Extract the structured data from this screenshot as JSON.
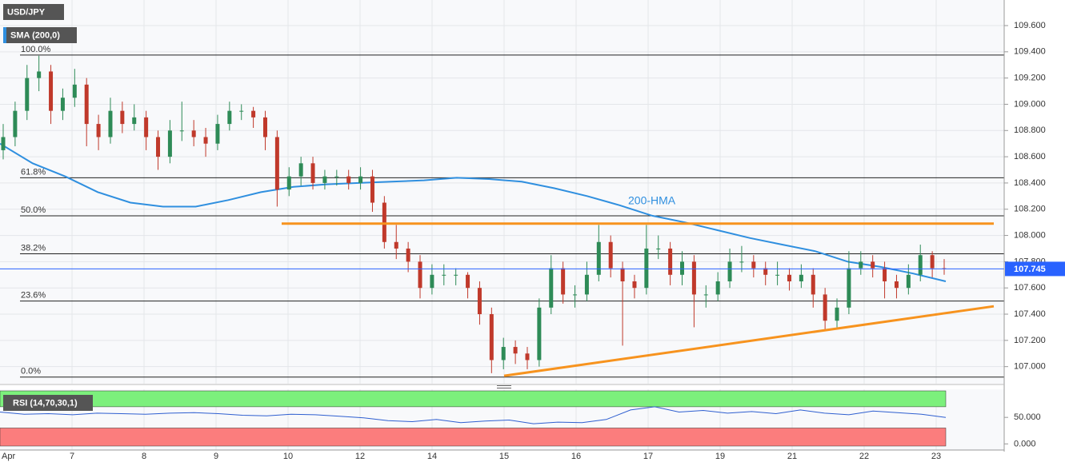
{
  "chart_data": {
    "type": "candlestick",
    "symbol": "USD/JPY",
    "indicator": "SMA (200,0)",
    "x_labels": [
      "Apr",
      "7",
      "8",
      "9",
      "10",
      "12",
      "14",
      "15",
      "16",
      "17",
      "19",
      "21",
      "22",
      "23"
    ],
    "up_color": "#2e8b57",
    "down_color": "#c0392b",
    "ohlc": [
      [
        108.65,
        108.85,
        108.58,
        108.75
      ],
      [
        108.75,
        109.02,
        108.68,
        108.95
      ],
      [
        108.95,
        109.3,
        108.88,
        109.2
      ],
      [
        109.2,
        109.37,
        109.1,
        109.25
      ],
      [
        109.25,
        109.3,
        108.85,
        108.95
      ],
      [
        108.95,
        109.12,
        108.88,
        109.05
      ],
      [
        109.05,
        109.27,
        108.98,
        109.15
      ],
      [
        109.15,
        109.2,
        108.68,
        108.85
      ],
      [
        108.85,
        108.92,
        108.65,
        108.75
      ],
      [
        108.75,
        109.05,
        108.7,
        108.95
      ],
      [
        108.95,
        109.02,
        108.78,
        108.85
      ],
      [
        108.85,
        109.0,
        108.8,
        108.9
      ],
      [
        108.9,
        108.95,
        108.65,
        108.75
      ],
      [
        108.75,
        108.8,
        108.5,
        108.6
      ],
      [
        108.6,
        108.88,
        108.55,
        108.8
      ],
      [
        108.8,
        109.02,
        108.72,
        108.8
      ],
      [
        108.8,
        108.88,
        108.68,
        108.75
      ],
      [
        108.75,
        108.82,
        108.6,
        108.7
      ],
      [
        108.7,
        108.92,
        108.65,
        108.85
      ],
      [
        108.85,
        109.02,
        108.8,
        108.95
      ],
      [
        108.95,
        109.0,
        108.88,
        108.95
      ],
      [
        108.95,
        108.98,
        108.82,
        108.9
      ],
      [
        108.9,
        108.95,
        108.65,
        108.75
      ],
      [
        108.75,
        108.8,
        108.22,
        108.35
      ],
      [
        108.35,
        108.52,
        108.3,
        108.45
      ],
      [
        108.45,
        108.6,
        108.38,
        108.55
      ],
      [
        108.55,
        108.6,
        108.35,
        108.4
      ],
      [
        108.4,
        108.5,
        108.35,
        108.45
      ],
      [
        108.45,
        108.5,
        108.38,
        108.45
      ],
      [
        108.45,
        108.5,
        108.35,
        108.4
      ],
      [
        108.4,
        108.52,
        108.35,
        108.45
      ],
      [
        108.45,
        108.5,
        108.18,
        108.25
      ],
      [
        108.25,
        108.3,
        107.9,
        107.95
      ],
      [
        107.95,
        108.08,
        107.82,
        107.9
      ],
      [
        107.9,
        107.95,
        107.72,
        107.8
      ],
      [
        107.8,
        107.85,
        107.52,
        107.6
      ],
      [
        107.6,
        107.78,
        107.55,
        107.7
      ],
      [
        107.7,
        107.78,
        107.62,
        107.7
      ],
      [
        107.7,
        107.75,
        107.62,
        107.7
      ],
      [
        107.7,
        107.72,
        107.52,
        107.6
      ],
      [
        107.6,
        107.65,
        107.32,
        107.4
      ],
      [
        107.4,
        107.45,
        106.95,
        107.05
      ],
      [
        107.05,
        107.22,
        106.98,
        107.15
      ],
      [
        107.15,
        107.2,
        107.02,
        107.1
      ],
      [
        107.1,
        107.15,
        106.98,
        107.05
      ],
      [
        107.05,
        107.52,
        107.0,
        107.45
      ],
      [
        107.45,
        107.85,
        107.4,
        107.75
      ],
      [
        107.75,
        107.8,
        107.48,
        107.55
      ],
      [
        107.55,
        107.62,
        107.45,
        107.55
      ],
      [
        107.55,
        107.8,
        107.5,
        107.7
      ],
      [
        107.7,
        108.08,
        107.65,
        107.95
      ],
      [
        107.95,
        108.0,
        107.68,
        107.75
      ],
      [
        107.75,
        107.8,
        107.16,
        107.65
      ],
      [
        107.65,
        107.7,
        107.52,
        107.6
      ],
      [
        107.6,
        108.08,
        107.55,
        107.9
      ],
      [
        107.9,
        108.0,
        107.82,
        107.9
      ],
      [
        107.9,
        107.95,
        107.62,
        107.7
      ],
      [
        107.7,
        107.88,
        107.62,
        107.8
      ],
      [
        107.8,
        107.85,
        107.3,
        107.55
      ],
      [
        107.55,
        107.62,
        107.45,
        107.55
      ],
      [
        107.55,
        107.72,
        107.5,
        107.65
      ],
      [
        107.65,
        107.9,
        107.6,
        107.8
      ],
      [
        107.8,
        107.92,
        107.72,
        107.8
      ],
      [
        107.8,
        107.85,
        107.68,
        107.75
      ],
      [
        107.75,
        107.8,
        107.62,
        107.7
      ],
      [
        107.7,
        107.8,
        107.62,
        107.7
      ],
      [
        107.7,
        107.75,
        107.58,
        107.65
      ],
      [
        107.65,
        107.78,
        107.6,
        107.7
      ],
      [
        107.7,
        107.75,
        107.45,
        107.55
      ],
      [
        107.55,
        107.6,
        107.28,
        107.35
      ],
      [
        107.35,
        107.52,
        107.3,
        107.45
      ],
      [
        107.45,
        107.88,
        107.4,
        107.75
      ],
      [
        107.75,
        107.88,
        107.7,
        107.8
      ],
      [
        107.8,
        107.85,
        107.68,
        107.75
      ],
      [
        107.75,
        107.8,
        107.52,
        107.65
      ],
      [
        107.65,
        107.7,
        107.52,
        107.6
      ],
      [
        107.6,
        107.78,
        107.55,
        107.7
      ],
      [
        107.7,
        107.93,
        107.65,
        107.85
      ],
      [
        107.85,
        107.88,
        107.68,
        107.75
      ],
      [
        107.75,
        107.82,
        107.7,
        107.745
      ]
    ],
    "hma": {
      "name": "200-HMA",
      "color": "#2f8fdf",
      "values": [
        108.7,
        108.55,
        108.45,
        108.33,
        108.25,
        108.22,
        108.22,
        108.27,
        108.33,
        108.37,
        108.39,
        108.4,
        108.41,
        108.42,
        108.44,
        108.43,
        108.41,
        108.36,
        108.3,
        108.23,
        108.15,
        108.1,
        108.04,
        107.98,
        107.93,
        107.88,
        107.8,
        107.76,
        107.71,
        107.65
      ]
    },
    "ylim": [
      106.87,
      109.795
    ],
    "yticks": [
      {
        "value": 107.0,
        "label": "107.000"
      },
      {
        "value": 107.2,
        "label": "107.200"
      },
      {
        "value": 107.4,
        "label": "107.400"
      },
      {
        "value": 107.6,
        "label": "107.600"
      },
      {
        "value": 107.8,
        "label": "107.800"
      },
      {
        "value": 108.0,
        "label": "108.000"
      },
      {
        "value": 108.2,
        "label": "108.200"
      },
      {
        "value": 108.4,
        "label": "108.400"
      },
      {
        "value": 108.6,
        "label": "108.600"
      },
      {
        "value": 108.8,
        "label": "108.800"
      },
      {
        "value": 109.0,
        "label": "109.000"
      },
      {
        "value": 109.2,
        "label": "109.200"
      },
      {
        "value": 109.4,
        "label": "109.400"
      },
      {
        "value": 109.6,
        "label": "109.600"
      }
    ],
    "grid": true,
    "fib_levels": [
      {
        "value": 109.375,
        "label": "100.0%"
      },
      {
        "value": 108.44,
        "label": "61.8%"
      },
      {
        "value": 108.15,
        "label": "50.0%"
      },
      {
        "value": 107.86,
        "label": "38.2%"
      },
      {
        "value": 107.5,
        "label": "23.6%"
      },
      {
        "value": 106.92,
        "label": "0.0%"
      }
    ],
    "trendlines": {
      "color": "#f7931e",
      "resistance": [
        108.09,
        108.09
      ],
      "support": [
        106.93,
        107.46
      ]
    },
    "current_price": 107.745,
    "current_color": "#2962ff",
    "rsi": {
      "label": "RSI (14,70,30,1)",
      "color": "#2f5fd0",
      "values": [
        60,
        56,
        57,
        55,
        58,
        57,
        56,
        58,
        59,
        57,
        54,
        53,
        56,
        55,
        52,
        49,
        44,
        42,
        46,
        40,
        43,
        45,
        38,
        41,
        40,
        46,
        64,
        70,
        60,
        63,
        58,
        61,
        57,
        64,
        58,
        55,
        62,
        59,
        56,
        50
      ],
      "ylim": [
        -4,
        100
      ],
      "yticks": [
        {
          "value": 50,
          "label": "50.000"
        },
        {
          "value": 0,
          "label": "0.000"
        }
      ],
      "overbought": 70,
      "oversold": 30,
      "overbought_color": "#7cf07c",
      "oversold_color": "#fb7d7d"
    }
  }
}
